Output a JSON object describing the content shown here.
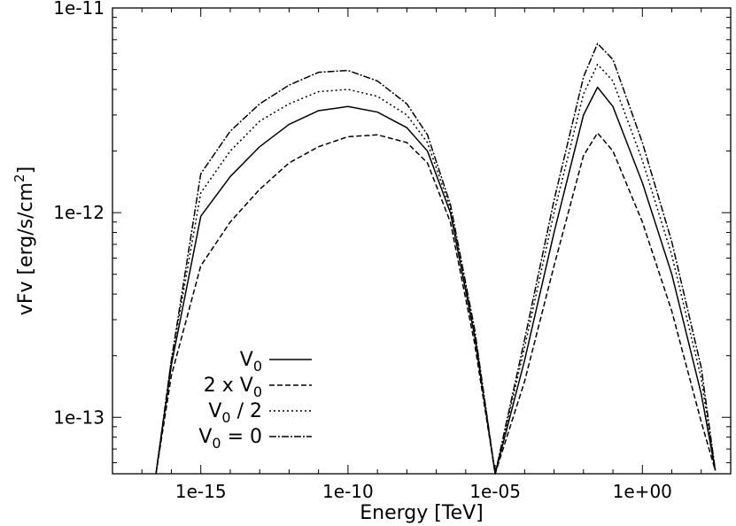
{
  "chart_data": {
    "type": "line",
    "title": "",
    "xlabel": "Energy [TeV]",
    "ylabel": "vFv [erg/s/cm²]",
    "xscale": "log",
    "yscale": "log",
    "xlim": [
      1e-18,
      1000.0
    ],
    "ylim": [
      5.3e-14,
      1e-11
    ],
    "x_ticks": [
      {
        "value": 1e-15,
        "label": "1e-15"
      },
      {
        "value": 1e-10,
        "label": "1e-10"
      },
      {
        "value": 1e-05,
        "label": "1e-05"
      },
      {
        "value": 1,
        "label": "1e+00"
      }
    ],
    "y_ticks": [
      {
        "value": 1e-11,
        "label": "1e-11"
      },
      {
        "value": 1e-12,
        "label": "1e-12"
      },
      {
        "value": 1e-13,
        "label": "1e-13"
      }
    ],
    "grid": false,
    "legend_position": "bottom-left",
    "series": [
      {
        "name": "V0",
        "legend": {
          "base": "V",
          "sub": "0",
          "rest": ""
        },
        "dash": "",
        "x": [
          3e-17,
          1e-16,
          1e-15,
          1e-14,
          1e-13,
          1e-12,
          1e-11,
          1e-10,
          1e-09,
          1e-08,
          5e-08,
          3e-07,
          2e-06,
          1e-05,
          0.0001,
          0.001,
          0.01,
          0.03,
          0.1,
          1,
          10,
          100.0,
          300.0
        ],
        "y": [
          5.3e-14,
          1.8e-13,
          9.6e-13,
          1.5e-12,
          2.1e-12,
          2.7e-12,
          3.15e-12,
          3.3e-12,
          3.1e-12,
          2.6e-12,
          2e-12,
          1e-12,
          2.5e-13,
          5.3e-14,
          1.9e-13,
          8e-13,
          3e-12,
          4.1e-12,
          3.3e-12,
          1.4e-12,
          5e-13,
          1.3e-13,
          5.5e-14
        ]
      },
      {
        "name": "2 x V0",
        "legend": {
          "base": "2 x V",
          "sub": "0",
          "rest": ""
        },
        "dash": "6,3",
        "x": [
          3e-17,
          1e-16,
          1e-15,
          1e-14,
          1e-13,
          1e-12,
          1e-11,
          1e-10,
          1e-09,
          1e-08,
          5e-08,
          3e-07,
          2e-06,
          1e-05,
          0.0001,
          0.001,
          0.01,
          0.03,
          0.1,
          1,
          10,
          100.0,
          300.0
        ],
        "y": [
          5.3e-14,
          1.6e-13,
          5.5e-13,
          9e-13,
          1.3e-12,
          1.75e-12,
          2.1e-12,
          2.35e-12,
          2.4e-12,
          2.2e-12,
          1.75e-12,
          9e-13,
          2.3e-13,
          5.3e-14,
          1.5e-13,
          5.5e-13,
          1.9e-12,
          2.45e-12,
          2e-12,
          9e-13,
          3.3e-13,
          9.5e-14,
          5.5e-14
        ]
      },
      {
        "name": "V0 / 2",
        "legend": {
          "base": "V",
          "sub": "0",
          "rest": " / 2"
        },
        "dash": "2,3",
        "x": [
          3e-17,
          1e-16,
          1e-15,
          1e-14,
          1e-13,
          1e-12,
          1e-11,
          1e-10,
          1e-09,
          1e-08,
          5e-08,
          3e-07,
          2e-06,
          1e-05,
          0.0001,
          0.001,
          0.01,
          0.03,
          0.1,
          1,
          10,
          100.0,
          300.0
        ],
        "y": [
          5.3e-14,
          1.9e-13,
          1.25e-12,
          2e-12,
          2.8e-12,
          3.4e-12,
          3.9e-12,
          4e-12,
          3.7e-12,
          3e-12,
          2.2e-12,
          1.05e-12,
          2.6e-13,
          5.3e-14,
          2.2e-13,
          1e-12,
          3.8e-12,
          5.3e-12,
          4.4e-12,
          1.8e-12,
          6.2e-13,
          1.55e-13,
          5.5e-14
        ]
      },
      {
        "name": "V0 = 0",
        "legend": {
          "base": "V",
          "sub": "0",
          "rest": " = 0"
        },
        "dash": "8,2,2,2",
        "x": [
          3e-17,
          1e-16,
          1e-15,
          1e-14,
          1e-13,
          1e-12,
          1e-11,
          1e-10,
          1e-09,
          1e-08,
          5e-08,
          3e-07,
          2e-06,
          1e-05,
          0.0001,
          0.001,
          0.01,
          0.03,
          0.1,
          1,
          10,
          100.0,
          300.0
        ],
        "y": [
          5.3e-14,
          1.9e-13,
          1.55e-12,
          2.5e-12,
          3.4e-12,
          4.2e-12,
          4.85e-12,
          4.95e-12,
          4.4e-12,
          3.4e-12,
          2.4e-12,
          1.1e-12,
          2.7e-13,
          5.3e-14,
          2.4e-13,
          1.15e-12,
          4.6e-12,
          6.7e-12,
          5.6e-12,
          2.2e-12,
          7.2e-13,
          1.75e-13,
          5.5e-14
        ]
      }
    ]
  }
}
